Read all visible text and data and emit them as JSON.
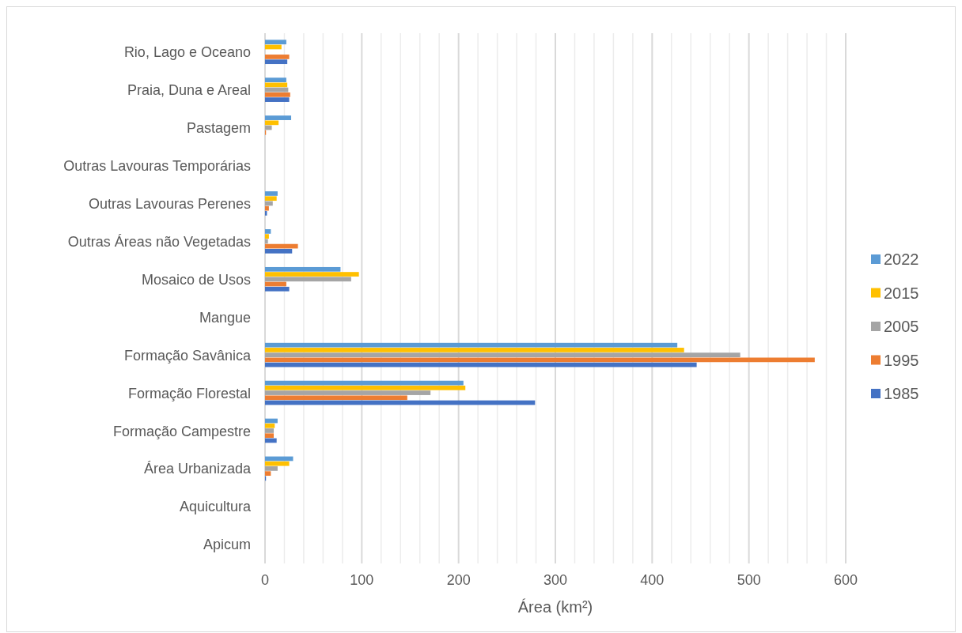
{
  "chart_data": {
    "type": "bar",
    "orientation": "horizontal",
    "xlabel": "Área (km²)",
    "categories": [
      "Rio, Lago e Oceano",
      "Praia, Duna e Areal",
      "Pastagem",
      "Outras Lavouras Temporárias",
      "Outras Lavouras Perenes",
      "Outras Áreas não Vegetadas",
      "Mosaico de Usos",
      "Mangue",
      "Formação Savânica",
      "Formação Florestal",
      "Formação Campestre",
      "Área Urbanizada",
      "Aquicultura",
      "Apicum"
    ],
    "series": [
      {
        "name": "2022",
        "color": "#5b9bd5",
        "values": [
          22,
          22,
          27,
          0,
          13,
          6,
          78,
          0,
          426,
          205,
          13,
          29,
          0,
          0
        ]
      },
      {
        "name": "2015",
        "color": "#ffc000",
        "values": [
          17,
          23,
          14,
          0,
          12,
          4,
          97,
          0,
          433,
          207,
          10,
          25,
          0,
          0
        ]
      },
      {
        "name": "2005",
        "color": "#a5a5a5",
        "values": [
          0,
          24,
          7,
          0,
          8,
          3,
          89,
          0,
          491,
          171,
          9,
          13,
          0,
          0
        ]
      },
      {
        "name": "1995",
        "color": "#ed7d31",
        "values": [
          25,
          26,
          1,
          0,
          4,
          34,
          22,
          0,
          568,
          147,
          9,
          6,
          0,
          0
        ]
      },
      {
        "name": "1985",
        "color": "#4472c4",
        "values": [
          23,
          25,
          0,
          0,
          2,
          28,
          25,
          0,
          446,
          279,
          12,
          1,
          0,
          0
        ]
      }
    ],
    "xlim": [
      0,
      600
    ],
    "xticks": [
      0,
      {
        "value": 20,
        "label": null
      },
      {
        "value": 40,
        "label": null
      },
      {
        "value": 60,
        "label": null
      },
      {
        "value": 80,
        "label": null
      },
      100,
      {
        "value": 120,
        "label": null
      },
      {
        "value": 140,
        "label": null
      },
      {
        "value": 160,
        "label": null
      },
      {
        "value": 180,
        "label": null
      },
      200,
      {
        "value": 220,
        "label": null
      },
      {
        "value": 240,
        "label": null
      },
      {
        "value": 260,
        "label": null
      },
      {
        "value": 280,
        "label": null
      },
      300,
      {
        "value": 320,
        "label": null
      },
      {
        "value": 340,
        "label": null
      },
      {
        "value": 360,
        "label": null
      },
      {
        "value": 380,
        "label": null
      },
      400,
      {
        "value": 420,
        "label": null
      },
      {
        "value": 440,
        "label": null
      },
      {
        "value": 460,
        "label": null
      },
      {
        "value": 480,
        "label": null
      },
      500,
      {
        "value": 520,
        "label": null
      },
      {
        "value": 540,
        "label": null
      },
      {
        "value": 560,
        "label": null
      },
      {
        "value": 580,
        "label": null
      },
      600
    ],
    "grid": "x",
    "legend": "right"
  }
}
